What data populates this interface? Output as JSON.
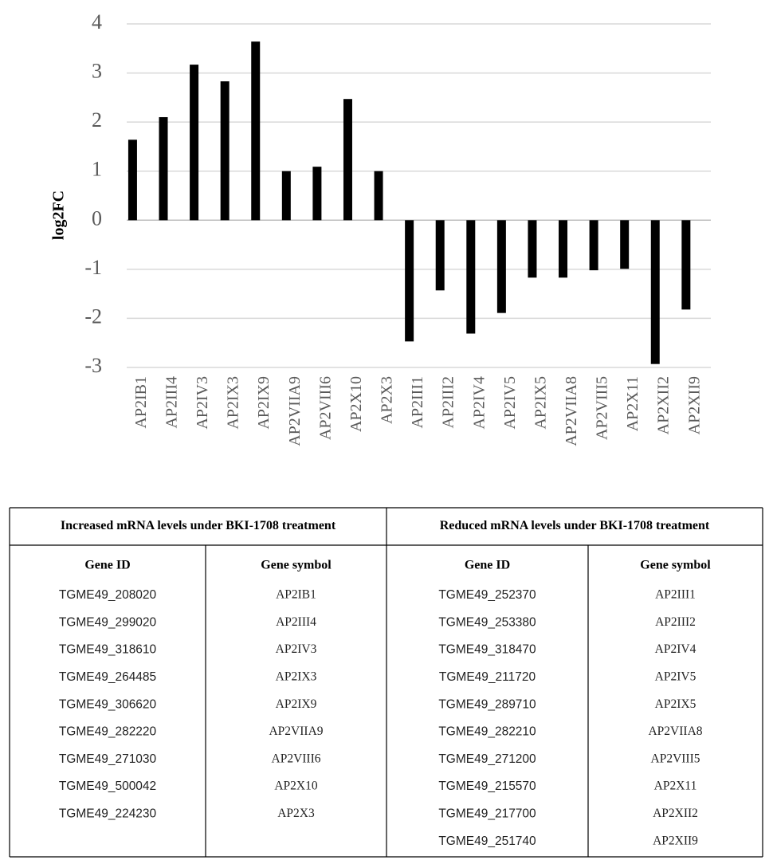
{
  "chart_data": {
    "type": "bar",
    "y_label": "log2FC",
    "categories": [
      "AP2IB1",
      "AP2III4",
      "AP2IV3",
      "AP2IX3",
      "AP2IX9",
      "AP2VIIA9",
      "AP2VIII6",
      "AP2X10",
      "AP2X3",
      "AP2III1",
      "AP2III2",
      "AP2IV4",
      "AP2IV5",
      "AP2IX5",
      "AP2VIIA8",
      "AP2VIII5",
      "AP2X11",
      "AP2XII2",
      "AP2XII9"
    ],
    "values": [
      1.64,
      2.1,
      3.17,
      2.83,
      3.64,
      1.0,
      1.09,
      2.47,
      1.0,
      -2.47,
      -1.43,
      -2.31,
      -1.89,
      -1.17,
      -1.17,
      -1.02,
      -0.99,
      -2.93,
      -1.82
    ],
    "color": "#000000",
    "ylim": [
      -3,
      4
    ],
    "yticks": [
      -3,
      -2,
      -1,
      0,
      1,
      2,
      3,
      4
    ],
    "grid": true
  },
  "table": {
    "groups": [
      {
        "title": "Increased mRNA levels under BKI-1708 treatment",
        "columns": [
          "Gene ID",
          "Gene symbol"
        ],
        "rows": [
          [
            "TGME49_208020",
            "AP2IB1"
          ],
          [
            "TGME49_299020",
            "AP2III4"
          ],
          [
            "TGME49_318610",
            "AP2IV3"
          ],
          [
            "TGME49_264485",
            "AP2IX3"
          ],
          [
            "TGME49_306620",
            "AP2IX9"
          ],
          [
            "TGME49_282220",
            "AP2VIIA9"
          ],
          [
            "TGME49_271030",
            "AP2VIII6"
          ],
          [
            "TGME49_500042",
            "AP2X10"
          ],
          [
            "TGME49_224230",
            "AP2X3"
          ]
        ]
      },
      {
        "title": "Reduced mRNA levels under BKI-1708 treatment",
        "columns": [
          "Gene ID",
          "Gene symbol"
        ],
        "rows": [
          [
            "TGME49_252370",
            "AP2III1"
          ],
          [
            "TGME49_253380",
            "AP2III2"
          ],
          [
            "TGME49_318470",
            "AP2IV4"
          ],
          [
            "TGME49_211720",
            "AP2IV5"
          ],
          [
            "TGME49_289710",
            "AP2IX5"
          ],
          [
            "TGME49_282210",
            "AP2VIIA8"
          ],
          [
            "TGME49_271200",
            "AP2VIII5"
          ],
          [
            "TGME49_215570",
            "AP2X11"
          ],
          [
            "TGME49_217700",
            "AP2XII2"
          ],
          [
            "TGME49_251740",
            "AP2XII9"
          ]
        ]
      }
    ]
  }
}
